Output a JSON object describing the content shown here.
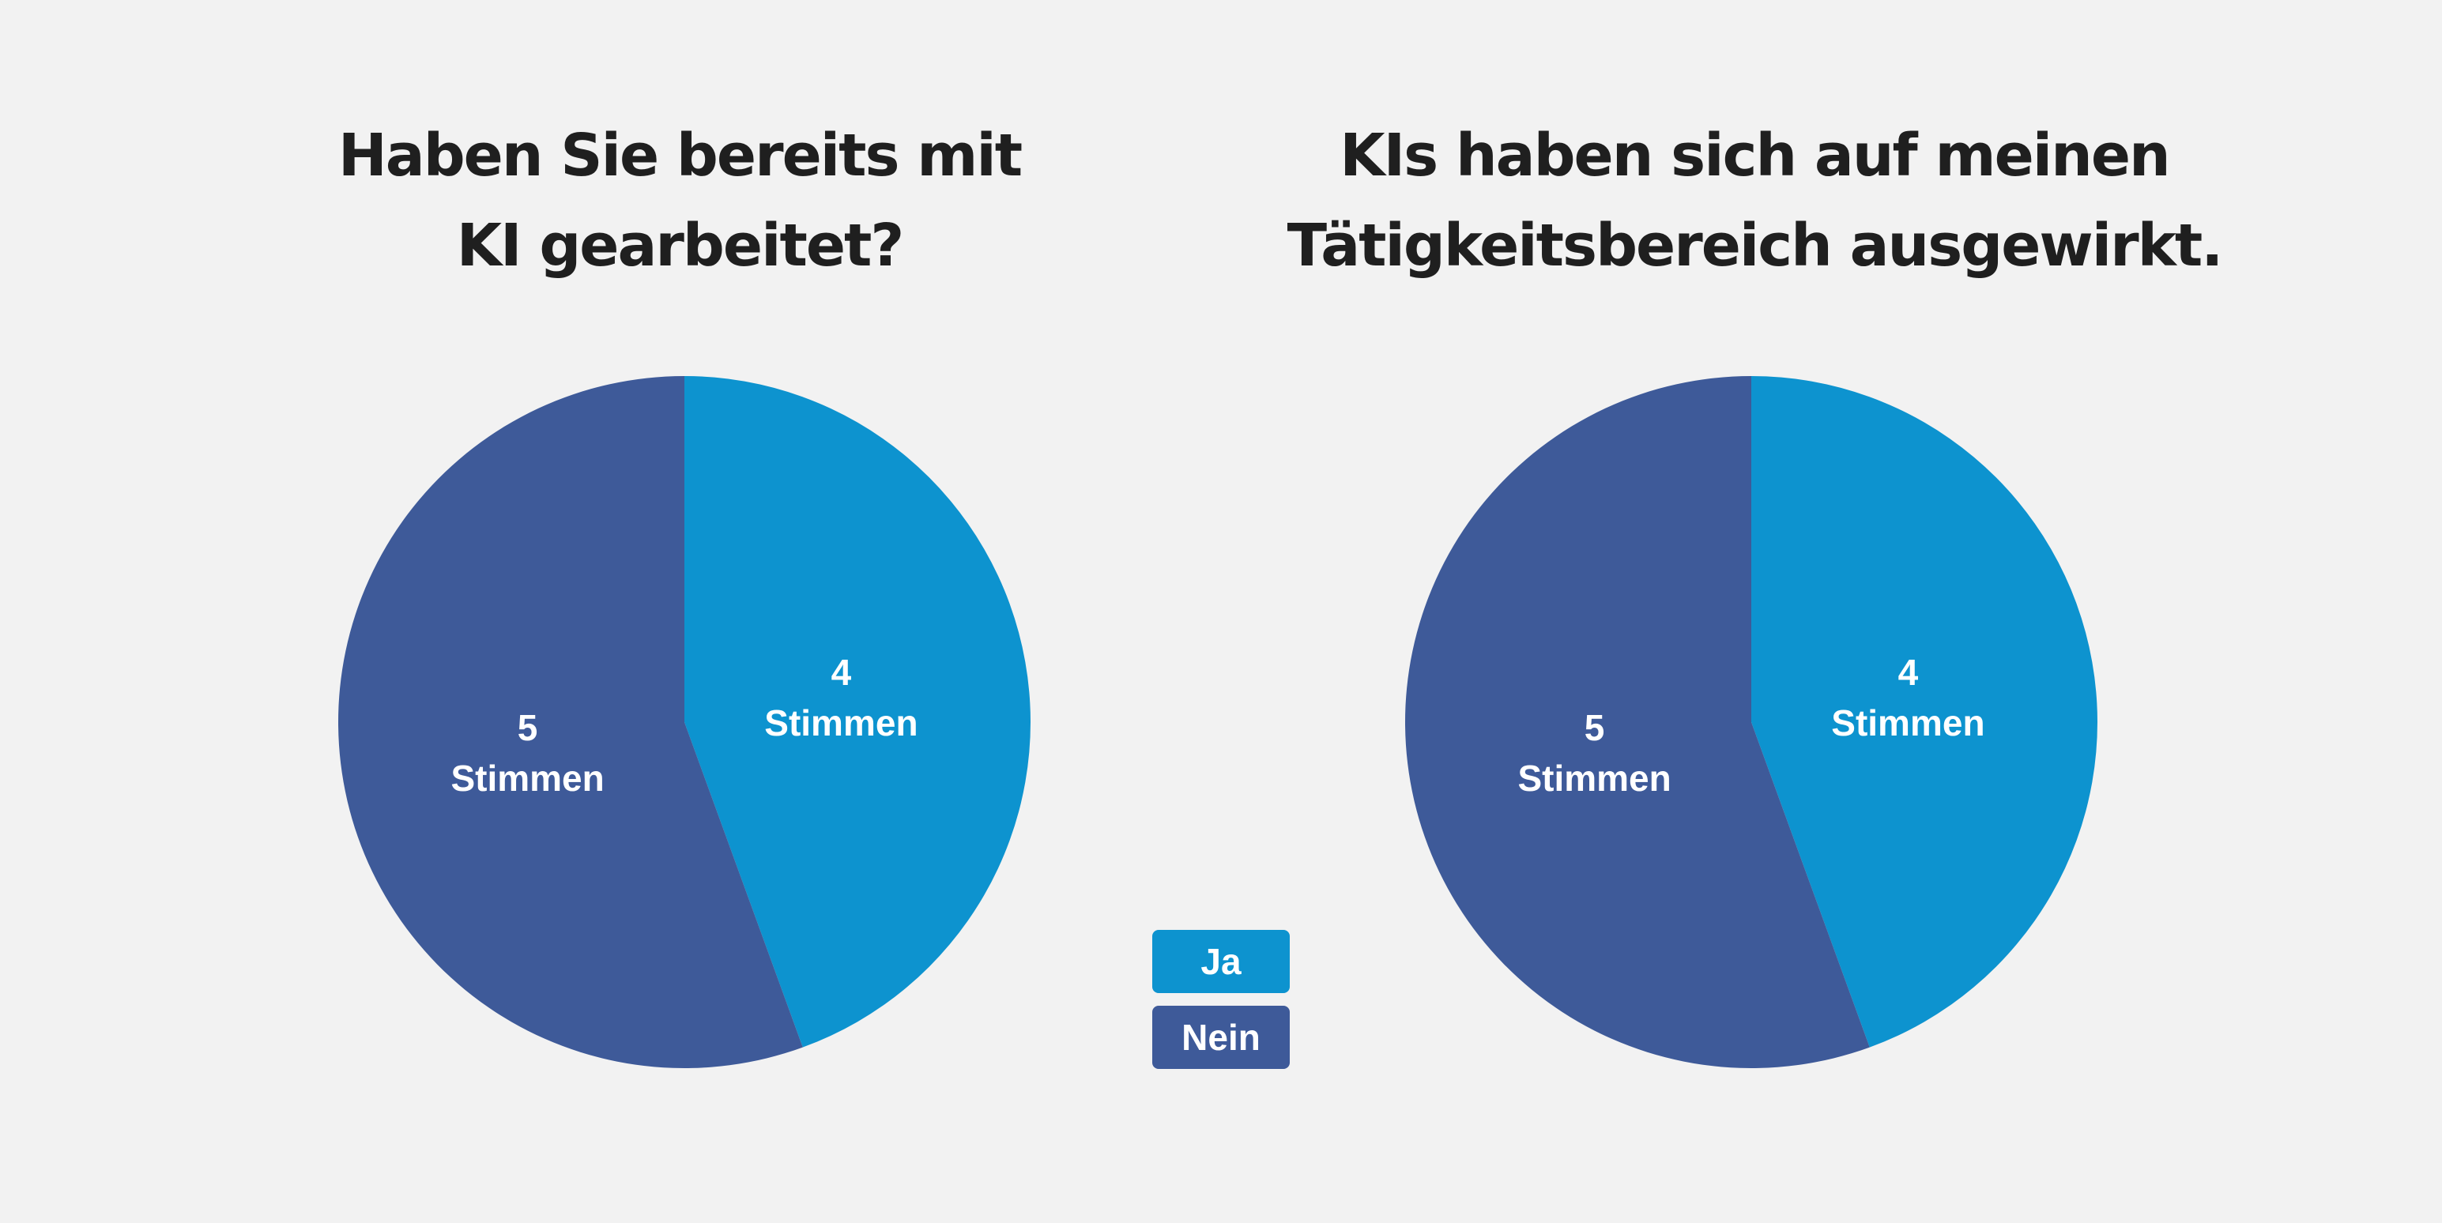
{
  "colors": {
    "background": "#f2f2f2",
    "ja": "#0d93cf",
    "nein": "#3e5a99"
  },
  "legend": [
    {
      "label": "Ja",
      "color": "#0d93cf"
    },
    {
      "label": "Nein",
      "color": "#3e5a99"
    }
  ],
  "chart_data": [
    {
      "type": "pie",
      "title_lines": [
        "Haben Sie bereits mit",
        "KI gearbeitet?"
      ],
      "slices": [
        {
          "category": "Ja",
          "value": 4,
          "label_lines": [
            "4",
            "Stimmen"
          ],
          "color": "#0d93cf"
        },
        {
          "category": "Nein",
          "value": 5,
          "label_lines": [
            "5",
            "Stimmen"
          ],
          "color": "#3e5a99"
        }
      ]
    },
    {
      "type": "pie",
      "title_lines": [
        "KIs haben sich auf meinen",
        "Tätigkeitsbereich ausgewirkt."
      ],
      "slices": [
        {
          "category": "Ja",
          "value": 4,
          "label_lines": [
            "4",
            "Stimmen"
          ],
          "color": "#0d93cf"
        },
        {
          "category": "Nein",
          "value": 5,
          "label_lines": [
            "5",
            "Stimmen"
          ],
          "color": "#3e5a99"
        }
      ]
    }
  ]
}
